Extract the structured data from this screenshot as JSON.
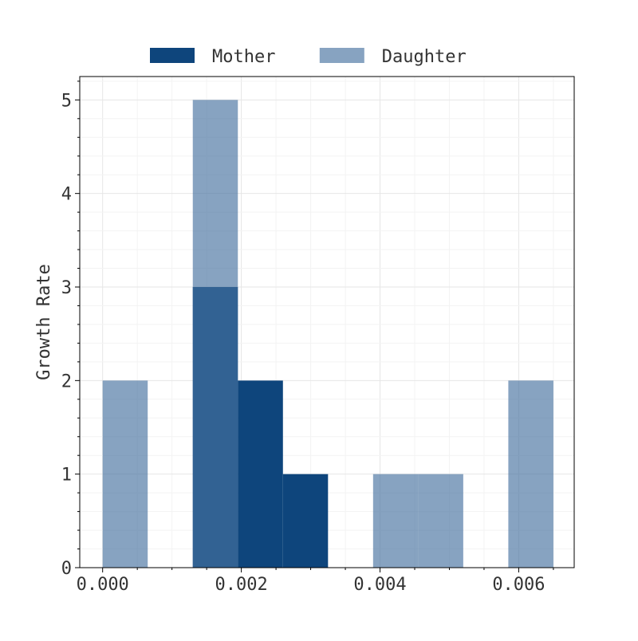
{
  "chart_data": {
    "type": "bar",
    "bin_edges": [
      0.0,
      0.00065,
      0.0013,
      0.00195,
      0.0026,
      0.00325,
      0.0039,
      0.00455,
      0.0052,
      0.00585,
      0.0065
    ],
    "series": [
      {
        "name": "Mother",
        "color": "#0e457c",
        "opacity": 1.0,
        "values": [
          0,
          0,
          3,
          2,
          1,
          0,
          0,
          0,
          0,
          0
        ]
      },
      {
        "name": "Daughter",
        "color": "#4772a0",
        "opacity": 0.65,
        "values": [
          2,
          0,
          5,
          0,
          0,
          0,
          1,
          1,
          0,
          2
        ]
      }
    ],
    "title": "",
    "xlabel": "",
    "ylabel": "Growth Rate",
    "xlim": [
      -0.00033,
      0.0068
    ],
    "ylim": [
      0,
      5.25
    ],
    "xticks": [
      0.0,
      0.002,
      0.004,
      0.006
    ],
    "xtick_labels": [
      "0.000",
      "0.002",
      "0.004",
      "0.006"
    ],
    "yticks": [
      0,
      1,
      2,
      3,
      4,
      5
    ],
    "ytick_labels": [
      "0",
      "1",
      "2",
      "3",
      "4",
      "5"
    ],
    "grid": true,
    "legend_position": "top-center"
  }
}
